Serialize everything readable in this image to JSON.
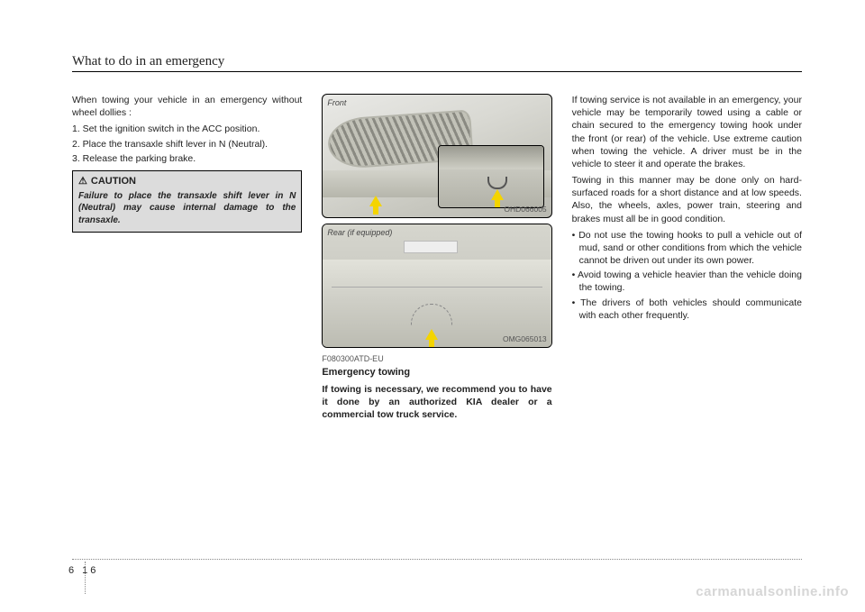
{
  "chapter_title": "What to do in an emergency",
  "col1": {
    "intro": "When towing your vehicle in an emergency without wheel dollies :",
    "step1": "1. Set the ignition switch in the ACC position.",
    "step2": "2. Place the transaxle shift lever in N (Neutral).",
    "step3": "3. Release the parking brake.",
    "caution_title": "CAUTION",
    "caution_body": "Failure to place the transaxle shift lever in N (Neutral) may cause internal damage to the transaxle."
  },
  "figures": {
    "front_label": "Front",
    "front_code": "OHD066005",
    "rear_label": "Rear (if equipped)",
    "rear_code": "OMG065013"
  },
  "col2": {
    "code": "F080300ATD-EU",
    "subhead": "Emergency towing",
    "bold": "If towing is necessary, we recommend you to have it done by an authorized KIA dealer or a commercial tow truck service."
  },
  "col3": {
    "p1": "If towing service is not available in an emergency, your vehicle may be temporarily towed using a cable or chain secured to the emergency towing hook under the front (or rear) of the vehicle. Use extreme caution when towing the vehicle. A driver must be in the vehicle to steer it and operate the brakes.",
    "p2": "Towing in this manner may be done only on hard-surfaced roads for a short distance and at low speeds. Also, the wheels, axles, power train, steering and brakes must all be in good condition.",
    "b1": "• Do not use the towing hooks to pull a vehicle out of mud, sand or other conditions from which the vehicle cannot be driven out under its own power.",
    "b2": "• Avoid towing a vehicle heavier than the vehicle doing the towing.",
    "b3": "• The drivers of both vehicles should communicate with each other frequently."
  },
  "page_number": "6 16",
  "watermark": "carmanualsonline.info"
}
